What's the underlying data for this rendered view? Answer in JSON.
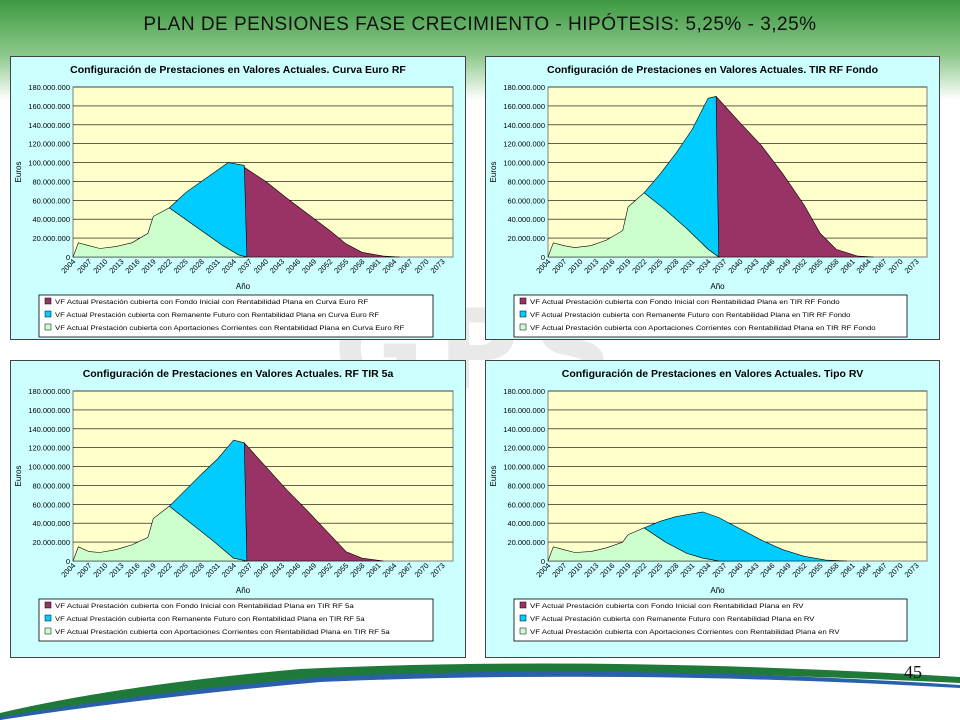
{
  "slide": {
    "title": "PLAN DE PENSIONES FASE CRECIMIENTO  -  HIPÓTESIS:  5,25%  -  3,25%",
    "page_number": "45"
  },
  "colors": {
    "series_fondo": "#993366",
    "series_remanente": "#00ccff",
    "series_aportaciones": "#ccffcc",
    "plot_bg": "#ffffcc",
    "chart_bg": "#ccffff"
  },
  "chart_data": [
    {
      "type": "area",
      "title": "Configuración de Prestaciones en Valores Actuales. Curva Euro RF",
      "xlabel": "Año",
      "ylabel": "Euros",
      "ylim": [
        0,
        180000000
      ],
      "yticks": [
        "0",
        "20.000.000",
        "40.000.000",
        "60.000.000",
        "80.000.000",
        "100.000.000",
        "120.000.000",
        "140.000.000",
        "160.000.000",
        "180.000.000"
      ],
      "xticks": [
        "2004",
        "2007",
        "2010",
        "2013",
        "2016",
        "2019",
        "2022",
        "2025",
        "2028",
        "2031",
        "2034",
        "2037",
        "2040",
        "2043",
        "2046",
        "2049",
        "2052",
        "2055",
        "2058",
        "2061",
        "2064",
        "2067",
        "2070",
        "2073"
      ],
      "xrange": [
        2004,
        2075
      ],
      "grid": true,
      "legend": "bottom",
      "series": [
        {
          "name": "VF Actual Prestación cubierta con Fondo Inicial con Rentabilidad Plana en Curva Euro RF",
          "color": "#993366",
          "points": [
            [
              2035,
              0
            ],
            [
              2036,
              95000000
            ],
            [
              2040,
              80000000
            ],
            [
              2044,
              62000000
            ],
            [
              2048,
              45000000
            ],
            [
              2052,
              28000000
            ],
            [
              2055,
              14000000
            ],
            [
              2058,
              5000000
            ],
            [
              2062,
              1000000
            ],
            [
              2065,
              0
            ]
          ]
        },
        {
          "name": "VF Actual Prestación cubierta con Remanente Futuro con Rentabilidad Plana en Curva Euro RF",
          "color": "#00ccff",
          "points": [
            [
              2022,
              52000000
            ],
            [
              2025,
              68000000
            ],
            [
              2028,
              80000000
            ],
            [
              2031,
              92000000
            ],
            [
              2033,
              100000000
            ],
            [
              2036,
              97000000
            ],
            [
              2036.5,
              0
            ],
            [
              2035,
              2000000
            ],
            [
              2032,
              12000000
            ],
            [
              2028,
              28000000
            ],
            [
              2025,
              40000000
            ]
          ]
        },
        {
          "name": "VF Actual Prestación cubierta con Aportaciones Corrientes con Rentabilidad Plana en Curva Euro RF",
          "color": "#ccffcc",
          "points": [
            [
              2004,
              0
            ],
            [
              2005,
              15000000
            ],
            [
              2007,
              12000000
            ],
            [
              2009,
              9000000
            ],
            [
              2012,
              11000000
            ],
            [
              2015,
              15000000
            ],
            [
              2018,
              25000000
            ],
            [
              2019,
              43000000
            ],
            [
              2022,
              52000000
            ],
            [
              2025,
              40000000
            ],
            [
              2028,
              28000000
            ],
            [
              2032,
              12000000
            ],
            [
              2035,
              2000000
            ],
            [
              2036.5,
              0
            ]
          ]
        }
      ]
    },
    {
      "type": "area",
      "title": "Configuración de Prestaciones en Valores Actuales. TIR RF Fondo",
      "xlabel": "Año",
      "ylabel": "Euros",
      "ylim": [
        0,
        180000000
      ],
      "yticks": [
        "0",
        "20.000.000",
        "40.000.000",
        "60.000.000",
        "80.000.000",
        "100.000.000",
        "120.000.000",
        "140.000.000",
        "160.000.000",
        "180.000.000"
      ],
      "xticks": [
        "2004",
        "2007",
        "2010",
        "2013",
        "2016",
        "2019",
        "2022",
        "2025",
        "2028",
        "2031",
        "2034",
        "2037",
        "2040",
        "2043",
        "2046",
        "2049",
        "2052",
        "2055",
        "2058",
        "2061",
        "2064",
        "2067",
        "2070",
        "2073"
      ],
      "xrange": [
        2004,
        2075
      ],
      "grid": true,
      "legend": "bottom",
      "series": [
        {
          "name": "VF Actual Prestación cubierta con Fondo Inicial con Rentabilidad Plana en TIR RF Fondo",
          "color": "#993366",
          "points": [
            [
              2035,
              0
            ],
            [
              2035.5,
              170000000
            ],
            [
              2040,
              142000000
            ],
            [
              2044,
              118000000
            ],
            [
              2048,
              88000000
            ],
            [
              2052,
              55000000
            ],
            [
              2055,
              25000000
            ],
            [
              2058,
              8000000
            ],
            [
              2062,
              1000000
            ],
            [
              2065,
              0
            ]
          ]
        },
        {
          "name": "VF Actual Prestación cubierta con Remanente Futuro con Rentabilidad Plana en TIR RF Fondo",
          "color": "#00ccff",
          "points": [
            [
              2022,
              68000000
            ],
            [
              2025,
              88000000
            ],
            [
              2028,
              110000000
            ],
            [
              2031,
              135000000
            ],
            [
              2034,
              168000000
            ],
            [
              2035.5,
              170000000
            ],
            [
              2036,
              0
            ],
            [
              2034,
              8000000
            ],
            [
              2030,
              30000000
            ],
            [
              2026,
              50000000
            ]
          ]
        },
        {
          "name": "VF Actual Prestación cubierta con Aportaciones Corrientes con Rentabilidad Plana en TIR RF Fondo",
          "color": "#ccffcc",
          "points": [
            [
              2004,
              0
            ],
            [
              2005,
              15000000
            ],
            [
              2007,
              12000000
            ],
            [
              2009,
              10000000
            ],
            [
              2012,
              12000000
            ],
            [
              2015,
              18000000
            ],
            [
              2018,
              28000000
            ],
            [
              2019,
              53000000
            ],
            [
              2022,
              68000000
            ],
            [
              2026,
              50000000
            ],
            [
              2030,
              30000000
            ],
            [
              2034,
              8000000
            ],
            [
              2036,
              0
            ]
          ]
        }
      ]
    },
    {
      "type": "area",
      "title": "Configuración de Prestaciones en Valores Actuales. RF TIR 5a",
      "xlabel": "Año",
      "ylabel": "Euros",
      "ylim": [
        0,
        180000000
      ],
      "yticks": [
        "0",
        "20.000.000",
        "40.000.000",
        "60.000.000",
        "80.000.000",
        "100.000.000",
        "120.000.000",
        "140.000.000",
        "160.000.000",
        "180.000.000"
      ],
      "xticks": [
        "2004",
        "2007",
        "2010",
        "2013",
        "2016",
        "2019",
        "2022",
        "2025",
        "2028",
        "2031",
        "2034",
        "2037",
        "2040",
        "2043",
        "2046",
        "2049",
        "2052",
        "2055",
        "2058",
        "2061",
        "2064",
        "2067",
        "2070",
        "2073"
      ],
      "xrange": [
        2004,
        2075
      ],
      "grid": true,
      "legend": "bottom",
      "series": [
        {
          "name": "VF Actual Prestación cubierta con Fondo Inicial con Rentabilidad Plana en TIR RF 5a",
          "color": "#993366",
          "points": [
            [
              2035.5,
              0
            ],
            [
              2036,
              125000000
            ],
            [
              2040,
              100000000
            ],
            [
              2044,
              75000000
            ],
            [
              2048,
              52000000
            ],
            [
              2052,
              28000000
            ],
            [
              2055,
              10000000
            ],
            [
              2058,
              3000000
            ],
            [
              2062,
              0
            ]
          ]
        },
        {
          "name": "VF Actual Prestación cubierta con Remanente Futuro con Rentabilidad Plana en TIR RF 5a",
          "color": "#00ccff",
          "points": [
            [
              2022,
              58000000
            ],
            [
              2025,
              75000000
            ],
            [
              2028,
              92000000
            ],
            [
              2031,
              108000000
            ],
            [
              2034,
              128000000
            ],
            [
              2036,
              125000000
            ],
            [
              2036.5,
              0
            ],
            [
              2034,
              3000000
            ],
            [
              2030,
              22000000
            ],
            [
              2026,
              40000000
            ]
          ]
        },
        {
          "name": "VF Actual Prestación cubierta con Aportaciones Corrientes con Rentabilidad Plana en TIR RF 5a",
          "color": "#ccffcc",
          "points": [
            [
              2004,
              0
            ],
            [
              2005,
              15000000
            ],
            [
              2007,
              10000000
            ],
            [
              2009,
              9000000
            ],
            [
              2012,
              12000000
            ],
            [
              2015,
              17000000
            ],
            [
              2018,
              25000000
            ],
            [
              2019,
              45000000
            ],
            [
              2022,
              58000000
            ],
            [
              2026,
              40000000
            ],
            [
              2030,
              22000000
            ],
            [
              2034,
              3000000
            ],
            [
              2036.5,
              0
            ]
          ]
        }
      ]
    },
    {
      "type": "area",
      "title": "Configuración de Prestaciones en Valores Actuales. Tipo RV",
      "xlabel": "Año",
      "ylabel": "Euros",
      "ylim": [
        0,
        180000000
      ],
      "yticks": [
        "0",
        "20.000.000",
        "40.000.000",
        "60.000.000",
        "80.000.000",
        "100.000.000",
        "120.000.000",
        "140.000.000",
        "160.000.000",
        "180.000.000"
      ],
      "xticks": [
        "2004",
        "2007",
        "2010",
        "2013",
        "2016",
        "2019",
        "2022",
        "2025",
        "2028",
        "2031",
        "2034",
        "2037",
        "2040",
        "2043",
        "2046",
        "2049",
        "2052",
        "2055",
        "2058",
        "2061",
        "2064",
        "2067",
        "2070",
        "2073"
      ],
      "xrange": [
        2004,
        2075
      ],
      "grid": true,
      "legend": "bottom",
      "series": [
        {
          "name": "VF Actual Prestación cubierta con Fondo Inicial con Rentabilidad Plana en RV",
          "color": "#993366",
          "points": [
            [
              2035,
              0
            ],
            [
              2036,
              1000000
            ],
            [
              2040,
              500000
            ],
            [
              2042,
              0
            ]
          ]
        },
        {
          "name": "VF Actual Prestación cubierta con Remanente Futuro con Rentabilidad Plana en RV",
          "color": "#00ccff",
          "points": [
            [
              2022,
              35000000
            ],
            [
              2025,
              42000000
            ],
            [
              2028,
              47000000
            ],
            [
              2031,
              50000000
            ],
            [
              2033,
              52000000
            ],
            [
              2036,
              46000000
            ],
            [
              2040,
              34000000
            ],
            [
              2044,
              22000000
            ],
            [
              2048,
              12000000
            ],
            [
              2052,
              5000000
            ],
            [
              2056,
              1000000
            ],
            [
              2060,
              0
            ],
            [
              2036,
              0
            ],
            [
              2033,
              3000000
            ],
            [
              2030,
              8000000
            ],
            [
              2026,
              20000000
            ]
          ]
        },
        {
          "name": "VF Actual Prestación cubierta con Aportaciones Corrientes con Rentabilidad Plana en RV",
          "color": "#ccffcc",
          "points": [
            [
              2004,
              0
            ],
            [
              2005,
              15000000
            ],
            [
              2007,
              12000000
            ],
            [
              2009,
              9000000
            ],
            [
              2012,
              10000000
            ],
            [
              2015,
              14000000
            ],
            [
              2018,
              20000000
            ],
            [
              2019,
              28000000
            ],
            [
              2022,
              35000000
            ],
            [
              2026,
              20000000
            ],
            [
              2030,
              8000000
            ],
            [
              2033,
              3000000
            ],
            [
              2036,
              0
            ]
          ]
        }
      ]
    }
  ]
}
